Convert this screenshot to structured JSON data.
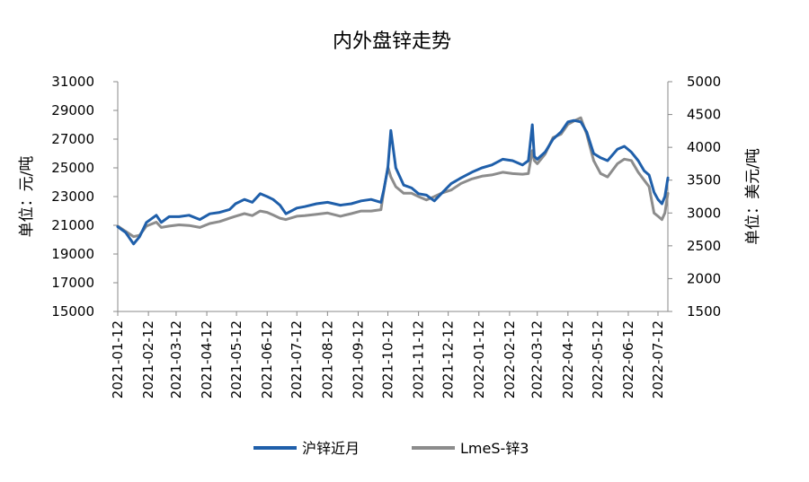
{
  "chart_data": {
    "type": "line",
    "title": "内外盘锌走势",
    "ylabel_left": "单位：元/吨",
    "ylabel_right": "单位：美元/吨",
    "ylim_left": [
      15000,
      31000
    ],
    "ylim_right": [
      1500,
      5000
    ],
    "yticks_left": [
      "31000",
      "29000",
      "27000",
      "25000",
      "23000",
      "21000",
      "19000",
      "17000",
      "15000"
    ],
    "yticks_right": [
      "5000",
      "4500",
      "4000",
      "3500",
      "3000",
      "2500",
      "2000",
      "1500"
    ],
    "x_ticks": [
      "2021-01-12",
      "2021-02-12",
      "2021-03-12",
      "2021-04-12",
      "2021-05-12",
      "2021-06-12",
      "2021-07-12",
      "2021-08-12",
      "2021-09-12",
      "2021-10-12",
      "2021-11-12",
      "2021-12-12",
      "2022-01-12",
      "2022-02-12",
      "2022-03-12",
      "2022-04-12",
      "2022-05-12",
      "2022-06-12",
      "2022-07-12"
    ],
    "x_range": [
      "2021-01-12",
      "2022-07-22"
    ],
    "grid": false,
    "legend_position": "bottom",
    "series": [
      {
        "name": "沪锌近月",
        "axis": "left",
        "color": "#1f5faa",
        "x": [
          "2021-01-12",
          "2021-01-20",
          "2021-01-28",
          "2021-02-03",
          "2021-02-10",
          "2021-02-20",
          "2021-02-25",
          "2021-03-05",
          "2021-03-15",
          "2021-03-25",
          "2021-04-05",
          "2021-04-15",
          "2021-04-25",
          "2021-05-05",
          "2021-05-11",
          "2021-05-20",
          "2021-05-28",
          "2021-06-05",
          "2021-06-12",
          "2021-06-18",
          "2021-06-25",
          "2021-07-01",
          "2021-07-12",
          "2021-07-20",
          "2021-08-01",
          "2021-08-12",
          "2021-08-25",
          "2021-09-05",
          "2021-09-15",
          "2021-09-25",
          "2021-10-05",
          "2021-10-08",
          "2021-10-12",
          "2021-10-15",
          "2021-10-20",
          "2021-10-28",
          "2021-11-05",
          "2021-11-12",
          "2021-11-20",
          "2021-11-28",
          "2021-12-05",
          "2021-12-15",
          "2021-12-25",
          "2022-01-05",
          "2022-01-15",
          "2022-01-25",
          "2022-02-05",
          "2022-02-15",
          "2022-02-25",
          "2022-03-03",
          "2022-03-07",
          "2022-03-09",
          "2022-03-12",
          "2022-03-20",
          "2022-03-28",
          "2022-04-05",
          "2022-04-12",
          "2022-04-18",
          "2022-04-25",
          "2022-05-01",
          "2022-05-08",
          "2022-05-15",
          "2022-05-22",
          "2022-06-01",
          "2022-06-08",
          "2022-06-15",
          "2022-06-22",
          "2022-06-28",
          "2022-07-03",
          "2022-07-08",
          "2022-07-12",
          "2022-07-16",
          "2022-07-19",
          "2022-07-22"
        ],
        "values": [
          20900,
          20500,
          19700,
          20200,
          21200,
          21700,
          21200,
          21600,
          21600,
          21700,
          21400,
          21800,
          21900,
          22100,
          22500,
          22800,
          22600,
          23200,
          23000,
          22800,
          22400,
          21800,
          22200,
          22300,
          22500,
          22600,
          22400,
          22500,
          22700,
          22800,
          22600,
          23500,
          25000,
          27600,
          25000,
          23800,
          23600,
          23200,
          23100,
          22700,
          23200,
          23900,
          24300,
          24700,
          25000,
          25200,
          25600,
          25500,
          25200,
          25500,
          28000,
          25800,
          25600,
          26100,
          27000,
          27500,
          28200,
          28300,
          28200,
          27500,
          26000,
          25700,
          25500,
          26300,
          26500,
          26100,
          25500,
          24800,
          24500,
          23300,
          22800,
          22500,
          23000,
          24300
        ]
      },
      {
        "name": "LmeS-锌3",
        "axis": "right",
        "color": "#8c8c8c",
        "x": [
          "2021-01-12",
          "2021-01-20",
          "2021-01-28",
          "2021-02-03",
          "2021-02-10",
          "2021-02-20",
          "2021-02-25",
          "2021-03-05",
          "2021-03-15",
          "2021-03-25",
          "2021-04-05",
          "2021-04-15",
          "2021-04-25",
          "2021-05-05",
          "2021-05-11",
          "2021-05-20",
          "2021-05-28",
          "2021-06-05",
          "2021-06-12",
          "2021-06-18",
          "2021-06-25",
          "2021-07-01",
          "2021-07-12",
          "2021-07-20",
          "2021-08-01",
          "2021-08-12",
          "2021-08-25",
          "2021-09-05",
          "2021-09-15",
          "2021-09-25",
          "2021-10-05",
          "2021-10-08",
          "2021-10-12",
          "2021-10-15",
          "2021-10-20",
          "2021-10-28",
          "2021-11-05",
          "2021-11-12",
          "2021-11-20",
          "2021-11-28",
          "2021-12-05",
          "2021-12-15",
          "2021-12-25",
          "2022-01-05",
          "2022-01-15",
          "2022-01-25",
          "2022-02-05",
          "2022-02-15",
          "2022-02-25",
          "2022-03-03",
          "2022-03-07",
          "2022-03-09",
          "2022-03-12",
          "2022-03-20",
          "2022-03-28",
          "2022-04-05",
          "2022-04-12",
          "2022-04-18",
          "2022-04-25",
          "2022-05-01",
          "2022-05-08",
          "2022-05-15",
          "2022-05-22",
          "2022-06-01",
          "2022-06-08",
          "2022-06-15",
          "2022-06-22",
          "2022-06-28",
          "2022-07-03",
          "2022-07-08",
          "2022-07-12",
          "2022-07-16",
          "2022-07-19",
          "2022-07-22"
        ],
        "values": [
          2800,
          2720,
          2640,
          2660,
          2800,
          2860,
          2780,
          2800,
          2820,
          2810,
          2780,
          2840,
          2870,
          2920,
          2950,
          2990,
          2960,
          3030,
          3010,
          2970,
          2920,
          2900,
          2950,
          2960,
          2980,
          3000,
          2950,
          2990,
          3030,
          3030,
          3050,
          3350,
          3700,
          3550,
          3400,
          3300,
          3300,
          3250,
          3200,
          3250,
          3300,
          3350,
          3450,
          3520,
          3560,
          3580,
          3620,
          3600,
          3590,
          3600,
          3950,
          3800,
          3750,
          3900,
          4150,
          4200,
          4350,
          4400,
          4450,
          4200,
          3800,
          3600,
          3550,
          3750,
          3820,
          3800,
          3620,
          3500,
          3400,
          3000,
          2950,
          2900,
          3000,
          3300
        ]
      }
    ]
  }
}
